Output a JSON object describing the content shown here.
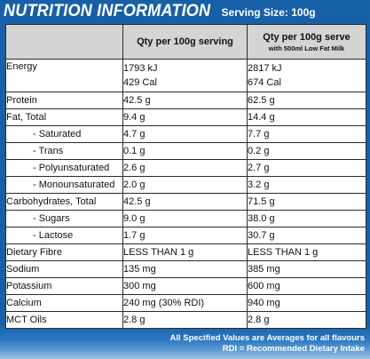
{
  "header": {
    "title": "NUTRITION INFORMATION",
    "serving_size": "Serving Size: 100g"
  },
  "columns": {
    "col1_label": "Qty per 100g serving",
    "col2_label": "Qty per 100g serve",
    "col2_sublabel": "with 500ml Low Fat Milk"
  },
  "rows": [
    {
      "name": "Energy",
      "v1": "1793 kJ",
      "v1b": "429 Cal",
      "v2": "2817 kJ",
      "v2b": "674 Cal"
    },
    {
      "name": "Protein",
      "v1": "42.5 g",
      "v2": "62.5 g"
    },
    {
      "name": "Fat,  Total",
      "v1": "9.4 g",
      "v2": "14.4 g"
    },
    {
      "name": "- Saturated",
      "v1": "4.7 g",
      "v2": "7.7 g"
    },
    {
      "name": "- Trans",
      "v1": "0.1 g",
      "v2": "0.2 g"
    },
    {
      "name": "- Polyunsaturated",
      "v1": "2.6 g",
      "v2": "2.7 g"
    },
    {
      "name": "- Monounsaturated",
      "v1": "2.0 g",
      "v2": "3.2 g"
    },
    {
      "name": "Carbohydrates,  Total",
      "v1": "42.5 g",
      "v2": "71.5 g"
    },
    {
      "name": "- Sugars",
      "v1": "9.0 g",
      "v2": "38.0 g"
    },
    {
      "name": "- Lactose",
      "v1": "1.7 g",
      "v2": "30.7 g"
    },
    {
      "name": "Dietary Fibre",
      "v1": "LESS THAN 1 g",
      "v2": "LESS THAN 1 g"
    },
    {
      "name": "Sodium",
      "v1": "135 mg",
      "v2": "385 mg"
    },
    {
      "name": "Potassium",
      "v1": "300 mg",
      "v2": "600 mg"
    },
    {
      "name": "Calcium",
      "v1": "240 mg (30% RDI)",
      "v2": "940 mg"
    },
    {
      "name": "MCT Oils",
      "v1": "2.8 g",
      "v2": "2.8 g"
    }
  ],
  "footer": {
    "line1": "All Specified Values are Averages for all flavours",
    "line2": "RDI = Recommended Dietary Intake"
  }
}
